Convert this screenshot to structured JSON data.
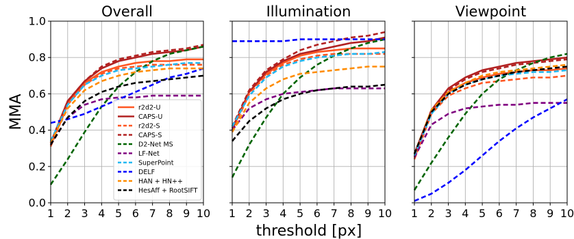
{
  "figure": {
    "ylabel": "MMA",
    "xlabel": "threshold [px]"
  },
  "chart_data": [
    {
      "type": "line",
      "title": "Overall",
      "x": [
        1,
        2,
        3,
        4,
        5,
        6,
        7,
        8,
        9,
        10
      ],
      "xlim": [
        1,
        10
      ],
      "ylim": [
        0.0,
        1.0
      ],
      "xticks": [
        "1",
        "2",
        "3",
        "4",
        "5",
        "6",
        "7",
        "8",
        "9",
        "10"
      ],
      "yticks": [
        "0.0",
        "0.2",
        "0.4",
        "0.6",
        "0.8",
        "1.0"
      ],
      "grid": true,
      "legend": "bottom-center",
      "series": [
        {
          "name": "r2d2-U",
          "color": "#ff5722",
          "dash": "solid",
          "values": [
            0.32,
            0.55,
            0.66,
            0.72,
            0.75,
            0.77,
            0.78,
            0.78,
            0.79,
            0.79
          ]
        },
        {
          "name": "CAPS-U",
          "color": "#b22222",
          "dash": "solid",
          "values": [
            0.33,
            0.56,
            0.67,
            0.74,
            0.78,
            0.8,
            0.82,
            0.83,
            0.84,
            0.86
          ]
        },
        {
          "name": "r2d2-S",
          "color": "#ff5722",
          "dash": "dashed",
          "values": [
            0.31,
            0.54,
            0.65,
            0.71,
            0.74,
            0.75,
            0.76,
            0.76,
            0.76,
            0.76
          ]
        },
        {
          "name": "CAPS-S",
          "color": "#b22222",
          "dash": "dashed",
          "values": [
            0.33,
            0.56,
            0.67,
            0.75,
            0.79,
            0.81,
            0.83,
            0.84,
            0.85,
            0.87
          ]
        },
        {
          "name": "D2-Net MS",
          "color": "#006400",
          "dash": "dashed",
          "values": [
            0.1,
            0.24,
            0.39,
            0.53,
            0.64,
            0.72,
            0.78,
            0.82,
            0.84,
            0.86
          ]
        },
        {
          "name": "LF-Net",
          "color": "#800080",
          "dash": "dashed",
          "values": [
            0.32,
            0.47,
            0.54,
            0.57,
            0.58,
            0.58,
            0.59,
            0.59,
            0.59,
            0.59
          ]
        },
        {
          "name": "SuperPoint",
          "color": "#22b8f2",
          "dash": "dashed",
          "values": [
            0.34,
            0.54,
            0.65,
            0.7,
            0.73,
            0.74,
            0.75,
            0.76,
            0.77,
            0.77
          ]
        },
        {
          "name": "DELF",
          "color": "#0000ff",
          "dash": "dashed",
          "values": [
            0.44,
            0.46,
            0.49,
            0.53,
            0.57,
            0.61,
            0.65,
            0.69,
            0.71,
            0.74
          ]
        },
        {
          "name": "HAN + HN++",
          "color": "#ff8c00",
          "dash": "dashed",
          "values": [
            0.33,
            0.52,
            0.62,
            0.67,
            0.7,
            0.72,
            0.73,
            0.74,
            0.74,
            0.74
          ]
        },
        {
          "name": "HesAff + RootSIFT",
          "color": "#000000",
          "dash": "dashed",
          "values": [
            0.32,
            0.47,
            0.56,
            0.61,
            0.64,
            0.66,
            0.67,
            0.68,
            0.69,
            0.7
          ]
        }
      ]
    },
    {
      "type": "line",
      "title": "Illumination",
      "x": [
        1,
        2,
        3,
        4,
        5,
        6,
        7,
        8,
        9,
        10
      ],
      "xlim": [
        1,
        10
      ],
      "ylim": [
        0.0,
        1.0
      ],
      "xticks": [
        "1",
        "2",
        "3",
        "4",
        "5",
        "6",
        "7",
        "8",
        "9",
        "10"
      ],
      "yticks": [],
      "grid": true,
      "series": [
        {
          "name": "r2d2-U",
          "color": "#ff5722",
          "dash": "solid",
          "values": [
            0.4,
            0.61,
            0.71,
            0.77,
            0.81,
            0.83,
            0.84,
            0.85,
            0.85,
            0.85
          ]
        },
        {
          "name": "CAPS-U",
          "color": "#b22222",
          "dash": "solid",
          "values": [
            0.41,
            0.61,
            0.72,
            0.78,
            0.82,
            0.84,
            0.86,
            0.88,
            0.89,
            0.91
          ]
        },
        {
          "name": "r2d2-S",
          "color": "#ff5722",
          "dash": "dashed",
          "values": [
            0.39,
            0.6,
            0.7,
            0.76,
            0.79,
            0.81,
            0.82,
            0.82,
            0.82,
            0.82
          ]
        },
        {
          "name": "CAPS-S",
          "color": "#b22222",
          "dash": "dashed",
          "values": [
            0.42,
            0.62,
            0.73,
            0.79,
            0.84,
            0.87,
            0.89,
            0.91,
            0.92,
            0.94
          ]
        },
        {
          "name": "D2-Net MS",
          "color": "#006400",
          "dash": "dashed",
          "values": [
            0.14,
            0.32,
            0.47,
            0.6,
            0.69,
            0.76,
            0.81,
            0.85,
            0.88,
            0.9
          ]
        },
        {
          "name": "LF-Net",
          "color": "#800080",
          "dash": "dashed",
          "values": [
            0.4,
            0.52,
            0.57,
            0.6,
            0.61,
            0.62,
            0.63,
            0.63,
            0.63,
            0.63
          ]
        },
        {
          "name": "SuperPoint",
          "color": "#22b8f2",
          "dash": "dashed",
          "values": [
            0.42,
            0.59,
            0.69,
            0.75,
            0.78,
            0.8,
            0.81,
            0.82,
            0.82,
            0.83
          ]
        },
        {
          "name": "DELF",
          "color": "#0000ff",
          "dash": "dashed",
          "values": [
            0.89,
            0.89,
            0.89,
            0.89,
            0.9,
            0.9,
            0.9,
            0.9,
            0.9,
            0.9
          ]
        },
        {
          "name": "HAN + HN++",
          "color": "#ff8c00",
          "dash": "dashed",
          "values": [
            0.39,
            0.55,
            0.63,
            0.68,
            0.71,
            0.72,
            0.73,
            0.74,
            0.75,
            0.75
          ]
        },
        {
          "name": "HesAff + RootSIFT",
          "color": "#000000",
          "dash": "dashed",
          "values": [
            0.34,
            0.45,
            0.52,
            0.57,
            0.6,
            0.62,
            0.63,
            0.64,
            0.64,
            0.65
          ]
        }
      ]
    },
    {
      "type": "line",
      "title": "Viewpoint",
      "x": [
        1,
        2,
        3,
        4,
        5,
        6,
        7,
        8,
        9,
        10
      ],
      "xlim": [
        1,
        10
      ],
      "ylim": [
        0.0,
        1.0
      ],
      "xticks": [
        "1",
        "2",
        "3",
        "4",
        "5",
        "6",
        "7",
        "8",
        "9",
        "10"
      ],
      "yticks": [],
      "grid": true,
      "series": [
        {
          "name": "r2d2-U",
          "color": "#ff5722",
          "dash": "solid",
          "values": [
            0.25,
            0.5,
            0.61,
            0.66,
            0.69,
            0.71,
            0.72,
            0.73,
            0.73,
            0.74
          ]
        },
        {
          "name": "CAPS-U",
          "color": "#b22222",
          "dash": "solid",
          "values": [
            0.27,
            0.51,
            0.63,
            0.69,
            0.73,
            0.75,
            0.77,
            0.78,
            0.79,
            0.8
          ]
        },
        {
          "name": "r2d2-S",
          "color": "#ff5722",
          "dash": "dashed",
          "values": [
            0.24,
            0.49,
            0.59,
            0.63,
            0.66,
            0.67,
            0.68,
            0.69,
            0.69,
            0.7
          ]
        },
        {
          "name": "CAPS-S",
          "color": "#b22222",
          "dash": "dashed",
          "values": [
            0.26,
            0.51,
            0.62,
            0.68,
            0.72,
            0.74,
            0.76,
            0.77,
            0.78,
            0.79
          ]
        },
        {
          "name": "D2-Net MS",
          "color": "#006400",
          "dash": "dashed",
          "values": [
            0.07,
            0.22,
            0.36,
            0.49,
            0.6,
            0.68,
            0.73,
            0.77,
            0.8,
            0.82
          ]
        },
        {
          "name": "LF-Net",
          "color": "#800080",
          "dash": "dashed",
          "values": [
            0.25,
            0.43,
            0.49,
            0.52,
            0.53,
            0.54,
            0.54,
            0.55,
            0.55,
            0.55
          ]
        },
        {
          "name": "SuperPoint",
          "color": "#22b8f2",
          "dash": "dashed",
          "values": [
            0.26,
            0.49,
            0.6,
            0.65,
            0.68,
            0.7,
            0.71,
            0.72,
            0.72,
            0.73
          ]
        },
        {
          "name": "DELF",
          "color": "#0000ff",
          "dash": "dashed",
          "values": [
            0.01,
            0.05,
            0.11,
            0.18,
            0.26,
            0.34,
            0.41,
            0.47,
            0.52,
            0.57
          ]
        },
        {
          "name": "HAN + HN++",
          "color": "#ff8c00",
          "dash": "dashed",
          "values": [
            0.27,
            0.51,
            0.61,
            0.66,
            0.7,
            0.72,
            0.73,
            0.74,
            0.75,
            0.76
          ]
        },
        {
          "name": "HesAff + RootSIFT",
          "color": "#000000",
          "dash": "dashed",
          "values": [
            0.27,
            0.5,
            0.6,
            0.65,
            0.68,
            0.7,
            0.72,
            0.73,
            0.74,
            0.75
          ]
        }
      ]
    }
  ]
}
